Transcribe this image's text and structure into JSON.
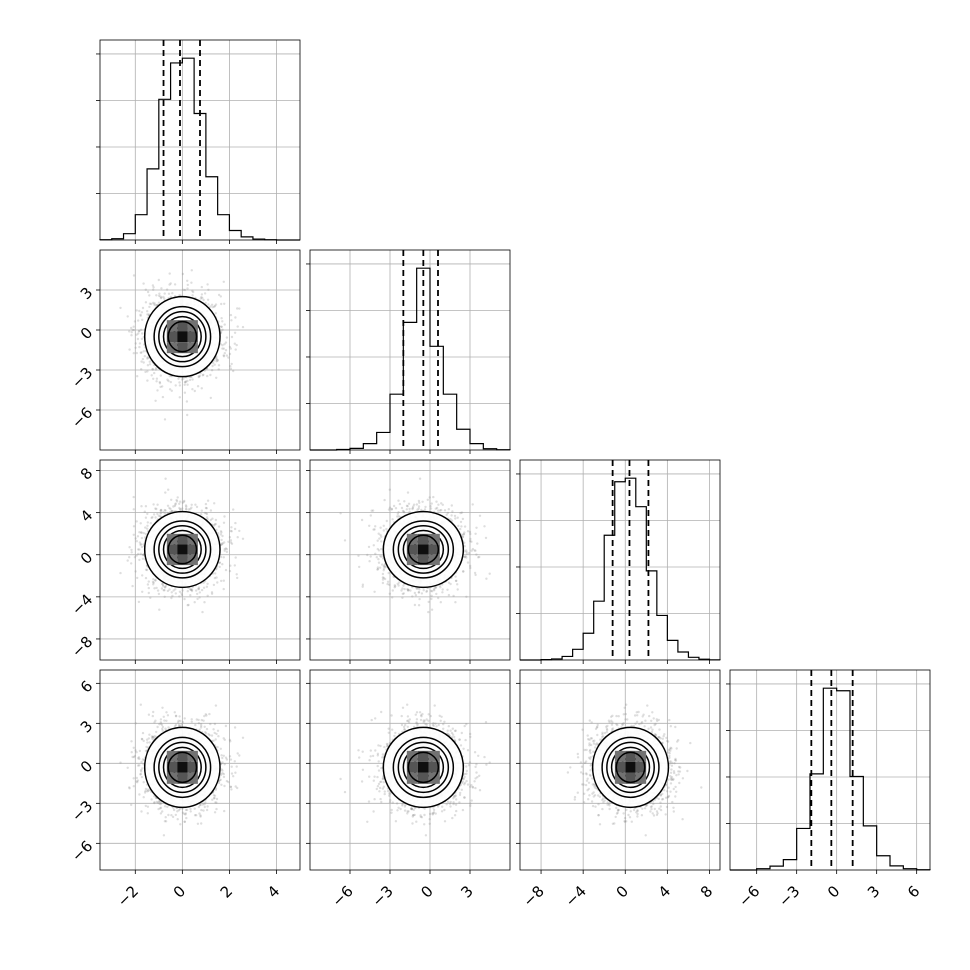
{
  "chart_data": {
    "type": "corner",
    "n_params": 4,
    "params": [
      {
        "mean": 0.0,
        "std": 0.8,
        "range": [
          -3.5,
          5.0
        ],
        "ticks": [
          -2,
          0,
          2,
          4
        ],
        "tick_labels": [
          "−2",
          "0",
          "2",
          "4"
        ],
        "quantiles": [
          -0.8,
          -0.1,
          0.75
        ]
      },
      {
        "mean": -0.5,
        "std": 1.5,
        "range": [
          -9.0,
          6.0
        ],
        "ticks": [
          -6,
          -3,
          0,
          3
        ],
        "tick_labels": [
          "−6",
          "−3",
          "0",
          "3"
        ],
        "quantiles": [
          -2.0,
          -0.5,
          0.6
        ]
      },
      {
        "mean": 0.5,
        "std": 1.8,
        "range": [
          -10.0,
          9.0
        ],
        "ticks": [
          -8,
          -4,
          0,
          4,
          8
        ],
        "tick_labels": [
          "−8",
          "−4",
          "0",
          "4",
          "8"
        ],
        "quantiles": [
          -1.2,
          0.4,
          2.2
        ]
      },
      {
        "mean": -0.3,
        "std": 1.5,
        "range": [
          -8.0,
          7.0
        ],
        "ticks": [
          -6,
          -3,
          0,
          3,
          6
        ],
        "tick_labels": [
          "−6",
          "−3",
          "0",
          "3",
          "6"
        ],
        "quantiles": [
          -1.9,
          -0.4,
          1.2
        ]
      }
    ],
    "histograms": [
      {
        "param": 0,
        "bins": [
          -3.5,
          -3.0,
          -2.5,
          -2.0,
          -1.5,
          -1.0,
          -0.5,
          0.0,
          0.5,
          1.0,
          1.5,
          2.0,
          2.5,
          3.0,
          3.5,
          4.0,
          4.5,
          5.0
        ],
        "counts": [
          2,
          8,
          40,
          160,
          450,
          890,
          1120,
          1150,
          800,
          400,
          160,
          60,
          20,
          6,
          2,
          0,
          0
        ]
      },
      {
        "param": 1,
        "bins": [
          -9,
          -8,
          -7,
          -6,
          -5,
          -4,
          -3,
          -2,
          -1,
          0,
          1,
          2,
          3,
          4,
          5,
          6
        ],
        "counts": [
          0,
          0,
          3,
          10,
          40,
          110,
          350,
          800,
          1140,
          650,
          350,
          130,
          40,
          8,
          2
        ]
      },
      {
        "param": 2,
        "bins": [
          -10,
          -9,
          -8,
          -7,
          -6,
          -5,
          -4,
          -3,
          -2,
          -1,
          0,
          1,
          2,
          3,
          4,
          5,
          6,
          7,
          8,
          9
        ],
        "counts": [
          0,
          0,
          2,
          6,
          20,
          60,
          150,
          330,
          700,
          1000,
          1020,
          860,
          500,
          250,
          110,
          45,
          15,
          4,
          1
        ]
      },
      {
        "param": 3,
        "bins": [
          -8,
          -7,
          -6,
          -5,
          -4,
          -3,
          -2,
          -1,
          0,
          1,
          2,
          3,
          4,
          5,
          6,
          7
        ],
        "counts": [
          0,
          0,
          5,
          15,
          40,
          160,
          370,
          700,
          690,
          360,
          170,
          55,
          16,
          5,
          1
        ]
      }
    ],
    "pairs": [
      {
        "x_param": 0,
        "y_param": 1,
        "level_radii_sigma": [
          0.5,
          1.0,
          1.5,
          2.0
        ]
      },
      {
        "x_param": 0,
        "y_param": 2,
        "level_radii_sigma": [
          0.5,
          1.0,
          1.5,
          2.0
        ]
      },
      {
        "x_param": 1,
        "y_param": 2,
        "level_radii_sigma": [
          0.5,
          1.0,
          1.5,
          2.0
        ]
      },
      {
        "x_param": 0,
        "y_param": 3,
        "level_radii_sigma": [
          0.5,
          1.0,
          1.5,
          2.0
        ]
      },
      {
        "x_param": 1,
        "y_param": 3,
        "level_radii_sigma": [
          0.5,
          1.0,
          1.5,
          2.0
        ]
      },
      {
        "x_param": 2,
        "y_param": 3,
        "level_radii_sigma": [
          0.5,
          1.0,
          1.5,
          2.0
        ]
      }
    ],
    "grid": true,
    "colors": {
      "points": "#8a8a8a",
      "lines": "#000000",
      "grid": "#b0b0b0"
    }
  }
}
